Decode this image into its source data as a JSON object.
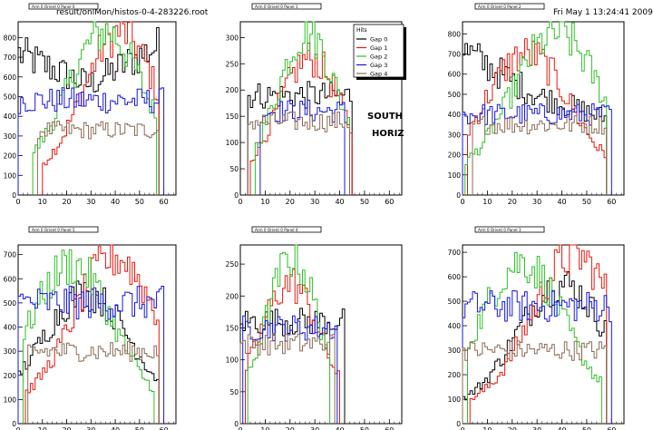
{
  "header": {
    "file": "result/onlMon/histos-0-4-283226.root",
    "datetime": "Fri May  1 13:24:41 2009"
  },
  "annotation": {
    "line1": "SOUTH",
    "line2": "HORIZ"
  },
  "legend": {
    "title": "Hits",
    "entries": [
      {
        "name": "Gap 0",
        "color": "#000000"
      },
      {
        "name": "Gap 1",
        "color": "#e8180c"
      },
      {
        "name": "Gap 2",
        "color": "#2fbf26"
      },
      {
        "name": "Gap 3",
        "color": "#1616e0"
      },
      {
        "name": "Gap 4",
        "color": "#8b6b55"
      }
    ]
  },
  "chart_data": [
    {
      "type": "line",
      "title": "Arm 0 Orient 0 Panel 0",
      "xlim": [
        0,
        65
      ],
      "ylim": [
        0,
        880
      ],
      "xticks": [
        0,
        10,
        20,
        30,
        40,
        50,
        60
      ],
      "yticks": [
        0,
        100,
        200,
        300,
        400,
        500,
        600,
        700,
        800
      ],
      "series": [
        {
          "name": "Gap 0",
          "color": "#000000",
          "x_start": 0,
          "x_end": 58,
          "profile": "bathtub",
          "y_start": 720,
          "y_mid": 560,
          "y_end": 760
        },
        {
          "name": "Gap 1",
          "color": "#e8180c",
          "x_start": 10,
          "x_end": 58,
          "profile": "bell",
          "y_peak": 830,
          "peak_x": 42
        },
        {
          "name": "Gap 2",
          "color": "#2fbf26",
          "x_start": 6,
          "x_end": 57,
          "profile": "bell",
          "y_peak": 830,
          "peak_x": 36
        },
        {
          "name": "Gap 3",
          "color": "#1616e0",
          "x_start": 0,
          "x_end": 60,
          "profile": "flat",
          "y_level": 480
        },
        {
          "name": "Gap 4",
          "color": "#8b6b55",
          "x_start": 8,
          "x_end": 58,
          "profile": "flat",
          "y_level": 330
        }
      ]
    },
    {
      "type": "line",
      "title": "Arm 0 Orient 0 Panel 1",
      "xlim": [
        0,
        65
      ],
      "ylim": [
        0,
        330
      ],
      "xticks": [
        0,
        10,
        20,
        30,
        40,
        50,
        60
      ],
      "yticks": [
        0,
        50,
        100,
        150,
        200,
        250,
        300
      ],
      "series": [
        {
          "name": "Gap 0",
          "color": "#000000",
          "x_start": 3,
          "x_end": 45,
          "profile": "flat",
          "y_level": 190
        },
        {
          "name": "Gap 1",
          "color": "#e8180c",
          "x_start": 4,
          "x_end": 45,
          "profile": "bell",
          "y_peak": 260,
          "peak_x": 28
        },
        {
          "name": "Gap 2",
          "color": "#2fbf26",
          "x_start": 6,
          "x_end": 44,
          "profile": "bell",
          "y_peak": 310,
          "peak_x": 27
        },
        {
          "name": "Gap 3",
          "color": "#1616e0",
          "x_start": 8,
          "x_end": 42,
          "profile": "flat",
          "y_level": 160
        },
        {
          "name": "Gap 4",
          "color": "#8b6b55",
          "x_start": 3,
          "x_end": 44,
          "profile": "flat",
          "y_level": 140
        }
      ]
    },
    {
      "type": "line",
      "title": "Arm 0 Orient 0 Panel 2",
      "xlim": [
        0,
        65
      ],
      "ylim": [
        0,
        860
      ],
      "xticks": [
        0,
        10,
        20,
        30,
        40,
        50,
        60
      ],
      "yticks": [
        0,
        100,
        200,
        300,
        400,
        500,
        600,
        700,
        800
      ],
      "series": [
        {
          "name": "Gap 0",
          "color": "#000000",
          "x_start": 0,
          "x_end": 58,
          "profile": "bathtub",
          "y_start": 720,
          "y_mid": 500,
          "y_end": 380
        },
        {
          "name": "Gap 1",
          "color": "#e8180c",
          "x_start": 2,
          "x_end": 58,
          "profile": "bell",
          "y_peak": 700,
          "peak_x": 26
        },
        {
          "name": "Gap 2",
          "color": "#2fbf26",
          "x_start": 1,
          "x_end": 58,
          "profile": "bell",
          "y_peak": 800,
          "peak_x": 38
        },
        {
          "name": "Gap 3",
          "color": "#1616e0",
          "x_start": 0,
          "x_end": 60,
          "profile": "flat",
          "y_level": 400
        },
        {
          "name": "Gap 4",
          "color": "#8b6b55",
          "x_start": 4,
          "x_end": 58,
          "profile": "flat",
          "y_level": 350
        }
      ]
    },
    {
      "type": "line",
      "title": "Arm 0 Orient 0 Panel 3",
      "xlim": [
        0,
        65
      ],
      "ylim": [
        0,
        730
      ],
      "xticks": [
        0,
        10,
        20,
        30,
        40,
        50,
        60
      ],
      "yticks": [
        0,
        100,
        200,
        300,
        400,
        500,
        600,
        700
      ],
      "series": [
        {
          "name": "Gap 0",
          "color": "#000000",
          "x_start": 0,
          "x_end": 58,
          "profile": "bell",
          "y_peak": 570,
          "peak_x": 40
        },
        {
          "name": "Gap 1",
          "color": "#e8180c",
          "x_start": 3,
          "x_end": 58,
          "profile": "bell",
          "y_peak": 690,
          "peak_x": 45
        },
        {
          "name": "Gap 2",
          "color": "#2fbf26",
          "x_start": 2,
          "x_end": 56,
          "profile": "bell",
          "y_peak": 660,
          "peak_x": 24
        },
        {
          "name": "Gap 3",
          "color": "#1616e0",
          "x_start": 0,
          "x_end": 60,
          "profile": "flat",
          "y_level": 480
        },
        {
          "name": "Gap 4",
          "color": "#8b6b55",
          "x_start": 0,
          "x_end": 58,
          "profile": "flat",
          "y_level": 300
        }
      ]
    },
    {
      "type": "line",
      "title": "Arm 0 Orient 0 Panel 4",
      "xlim": [
        0,
        65
      ],
      "ylim": [
        0,
        280
      ],
      "xticks": [
        0,
        10,
        20,
        30,
        40,
        50,
        60
      ],
      "yticks": [
        0,
        50,
        100,
        150,
        200,
        250
      ],
      "series": [
        {
          "name": "Gap 0",
          "color": "#000000",
          "x_start": 0,
          "x_end": 42,
          "profile": "flat",
          "y_level": 160
        },
        {
          "name": "Gap 1",
          "color": "#e8180c",
          "x_start": 2,
          "x_end": 40,
          "profile": "bell",
          "y_peak": 220,
          "peak_x": 20
        },
        {
          "name": "Gap 2",
          "color": "#2fbf26",
          "x_start": 3,
          "x_end": 36,
          "profile": "bell",
          "y_peak": 260,
          "peak_x": 21
        },
        {
          "name": "Gap 3",
          "color": "#1616e0",
          "x_start": 1,
          "x_end": 39,
          "profile": "flat",
          "y_level": 150
        },
        {
          "name": "Gap 4",
          "color": "#8b6b55",
          "x_start": 0,
          "x_end": 38,
          "profile": "flat",
          "y_level": 125
        }
      ]
    },
    {
      "type": "line",
      "title": "Arm 0 Orient 0 Panel 5",
      "xlim": [
        0,
        65
      ],
      "ylim": [
        0,
        740
      ],
      "xticks": [
        0,
        10,
        20,
        30,
        40,
        50,
        60
      ],
      "yticks": [
        0,
        100,
        200,
        300,
        400,
        500,
        600,
        700
      ],
      "series": [
        {
          "name": "Gap 0",
          "color": "#000000",
          "x_start": 0,
          "x_end": 58,
          "profile": "bell",
          "y_peak": 540,
          "peak_x": 28
        },
        {
          "name": "Gap 1",
          "color": "#e8180c",
          "x_start": 3,
          "x_end": 58,
          "profile": "bell",
          "y_peak": 690,
          "peak_x": 40
        },
        {
          "name": "Gap 2",
          "color": "#2fbf26",
          "x_start": 2,
          "x_end": 56,
          "profile": "bell",
          "y_peak": 660,
          "peak_x": 22
        },
        {
          "name": "Gap 3",
          "color": "#1616e0",
          "x_start": 0,
          "x_end": 60,
          "profile": "flat",
          "y_level": 500
        },
        {
          "name": "Gap 4",
          "color": "#8b6b55",
          "x_start": 4,
          "x_end": 58,
          "profile": "flat",
          "y_level": 300
        }
      ]
    }
  ]
}
